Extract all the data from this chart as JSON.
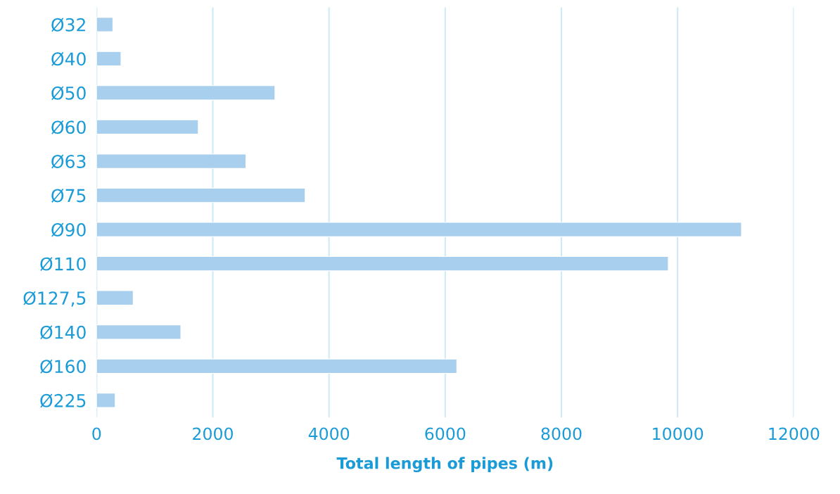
{
  "chart_data": {
    "type": "bar",
    "orientation": "horizontal",
    "xlabel": "Total length of pipes (m)",
    "categories": [
      "Ø32",
      "Ø40",
      "Ø50",
      "Ø60",
      "Ø63",
      "Ø75",
      "Ø90",
      "Ø110",
      "Ø127,5",
      "Ø140",
      "Ø160",
      "Ø225"
    ],
    "values": [
      280,
      420,
      3070,
      1750,
      2570,
      3590,
      11100,
      9840,
      630,
      1450,
      6200,
      320
    ],
    "color": "#a9cfee",
    "xlim": [
      0,
      12000
    ],
    "xticks": [
      0,
      2000,
      4000,
      6000,
      8000,
      10000,
      12000
    ],
    "grid": "x",
    "legend": false
  }
}
